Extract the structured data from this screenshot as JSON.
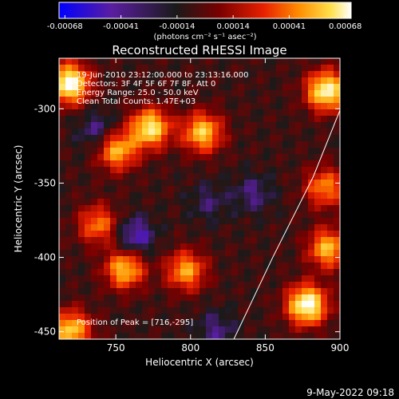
{
  "chart_data": {
    "type": "heatmap",
    "title": "Reconstructed RHESSI Image",
    "xlabel": "Heliocentric X (arcsec)",
    "ylabel": "Heliocentric Y (arcsec)",
    "xlim": [
      712,
      900
    ],
    "ylim": [
      -455,
      -266
    ],
    "x_ticks": [
      750,
      800,
      850,
      900
    ],
    "y_ticks": [
      -300,
      -350,
      -400,
      -450
    ],
    "colorbar": {
      "ticks": [
        "-0.00068",
        "-0.00041",
        "-0.00014",
        "0.00014",
        "0.00041",
        "0.00068"
      ],
      "range": [
        -0.00068,
        0.00068
      ],
      "unit_label": "(photons cm⁻² s⁻¹ asec⁻²)",
      "colormap": [
        "#0000ff",
        "#5a1ea0",
        "#1a1a1a",
        "#7a0000",
        "#e82000",
        "#ff8c00",
        "#ffe04a",
        "#ffffff"
      ]
    },
    "annotations": {
      "time_line": "19-Jun-2010 23:12:00.000 to 23:13:16.000",
      "detectors_line": "Detectors: 3F 4F 5F 6F 7F 8F, Att 0",
      "energy_line": "Energy Range: 25.0 - 50.0 keV",
      "method_line": "Clean    Total Counts: 1.47E+03",
      "peak_line": "Position of Peak = [716,-295]"
    },
    "limb_curve": [
      [
        829,
        -455
      ],
      [
        855,
        -400
      ],
      [
        882,
        -346
      ],
      [
        900,
        -301
      ]
    ],
    "hot_spots": [
      {
        "x": 719,
        "y": -283,
        "value": 0.00068
      },
      {
        "x": 773,
        "y": -313,
        "value": 0.00055
      },
      {
        "x": 808,
        "y": -316,
        "value": 0.00045
      },
      {
        "x": 891,
        "y": -288,
        "value": 0.00062
      },
      {
        "x": 751,
        "y": -328,
        "value": 0.0004
      },
      {
        "x": 738,
        "y": -378,
        "value": 0.00025
      },
      {
        "x": 756,
        "y": -408,
        "value": 0.00042
      },
      {
        "x": 797,
        "y": -409,
        "value": 0.00035
      },
      {
        "x": 878,
        "y": -432,
        "value": 0.00068
      },
      {
        "x": 892,
        "y": -394,
        "value": 0.0004
      },
      {
        "x": 720,
        "y": -449,
        "value": 0.00045
      },
      {
        "x": 890,
        "y": -353,
        "value": 0.00028
      }
    ],
    "cold_spots": [
      {
        "x": 763,
        "y": -386,
        "value": -0.00055
      },
      {
        "x": 738,
        "y": -315,
        "value": -0.0004
      },
      {
        "x": 842,
        "y": -357,
        "value": -0.00035
      },
      {
        "x": 817,
        "y": -449,
        "value": -0.00035
      },
      {
        "x": 812,
        "y": -363,
        "value": -0.00028
      }
    ]
  },
  "footer": {
    "date": "9-May-2022 09:18"
  }
}
